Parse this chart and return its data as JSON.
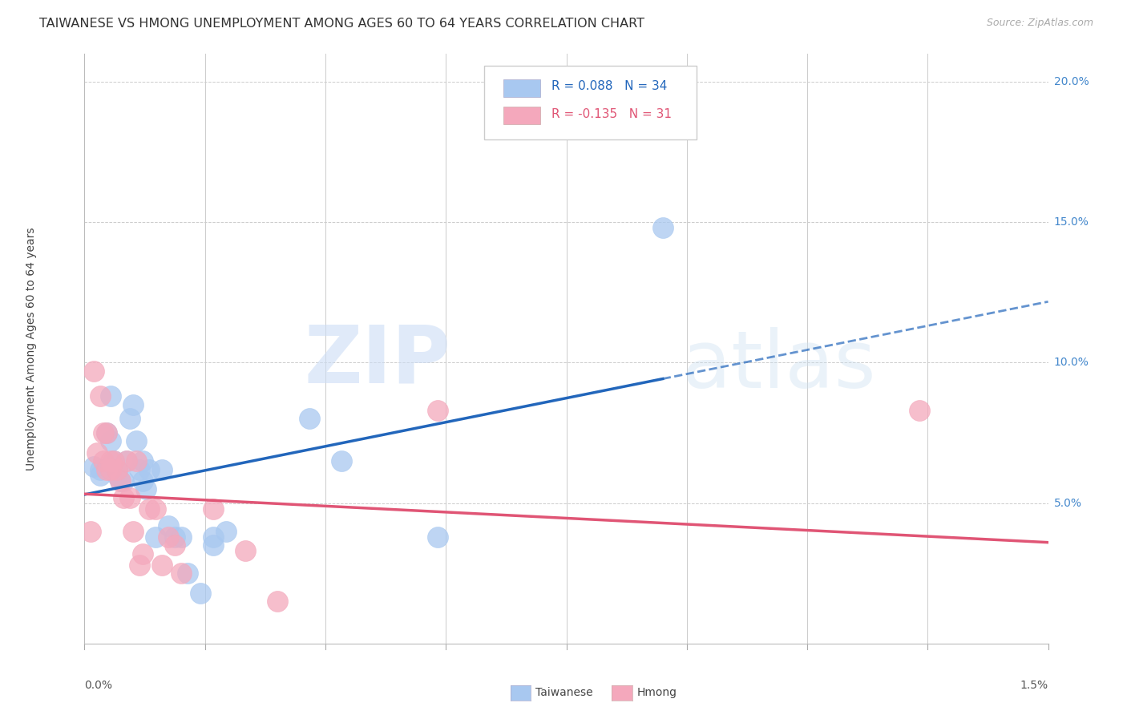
{
  "title": "TAIWANESE VS HMONG UNEMPLOYMENT AMONG AGES 60 TO 64 YEARS CORRELATION CHART",
  "source": "Source: ZipAtlas.com",
  "ylabel": "Unemployment Among Ages 60 to 64 years",
  "xlim": [
    0.0,
    0.015
  ],
  "ylim": [
    0.0,
    0.21
  ],
  "ytick_vals": [
    0.05,
    0.1,
    0.15,
    0.2
  ],
  "ytick_labels": [
    "5.0%",
    "10.0%",
    "15.0%",
    "20.0%"
  ],
  "taiwanese_color": "#a8c8f0",
  "hmong_color": "#f4a8bc",
  "taiwanese_line_color": "#2266bb",
  "hmong_line_color": "#e05575",
  "legend_taiwanese_R": "R = 0.088",
  "legend_taiwanese_N": "N = 34",
  "legend_hmong_R": "R = -0.135",
  "legend_hmong_N": "N = 31",
  "taiwanese_x": [
    0.00015,
    0.00025,
    0.00025,
    0.00035,
    0.0004,
    0.0004,
    0.00045,
    0.0005,
    0.0005,
    0.00055,
    0.0006,
    0.00065,
    0.0007,
    0.00075,
    0.0008,
    0.00085,
    0.0009,
    0.0009,
    0.00095,
    0.001,
    0.0011,
    0.0012,
    0.0013,
    0.0014,
    0.0015,
    0.0016,
    0.0018,
    0.002,
    0.002,
    0.0022,
    0.0035,
    0.004,
    0.0055,
    0.009
  ],
  "taiwanese_y": [
    0.063,
    0.062,
    0.06,
    0.075,
    0.088,
    0.072,
    0.065,
    0.062,
    0.06,
    0.058,
    0.058,
    0.065,
    0.08,
    0.085,
    0.072,
    0.062,
    0.065,
    0.058,
    0.055,
    0.062,
    0.038,
    0.062,
    0.042,
    0.038,
    0.038,
    0.025,
    0.018,
    0.038,
    0.035,
    0.04,
    0.08,
    0.065,
    0.038,
    0.148
  ],
  "hmong_x": [
    0.0001,
    0.00015,
    0.0002,
    0.00025,
    0.0003,
    0.0003,
    0.00035,
    0.00035,
    0.0004,
    0.0004,
    0.00045,
    0.0005,
    0.00055,
    0.0006,
    0.00065,
    0.0007,
    0.00075,
    0.0008,
    0.00085,
    0.0009,
    0.001,
    0.0011,
    0.0012,
    0.0013,
    0.0014,
    0.0015,
    0.002,
    0.0025,
    0.003,
    0.0055,
    0.013
  ],
  "hmong_y": [
    0.04,
    0.097,
    0.068,
    0.088,
    0.075,
    0.065,
    0.062,
    0.075,
    0.065,
    0.062,
    0.065,
    0.062,
    0.058,
    0.052,
    0.065,
    0.052,
    0.04,
    0.065,
    0.028,
    0.032,
    0.048,
    0.048,
    0.028,
    0.038,
    0.035,
    0.025,
    0.048,
    0.033,
    0.015,
    0.083,
    0.083
  ],
  "background_color": "#ffffff",
  "grid_color": "#cccccc",
  "title_fontsize": 11.5,
  "right_label_color": "#4488cc"
}
